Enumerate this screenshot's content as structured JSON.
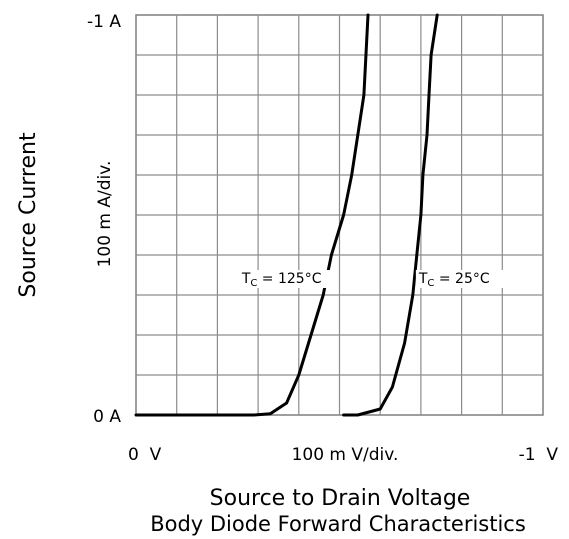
{
  "chart_data": {
    "type": "line",
    "title": "Body Diode Forward Characteristics",
    "xlabel": "Source to Drain Voltage",
    "ylabel": "Source Current",
    "x_tick_labels": {
      "left": "0  V",
      "center": "100 m V/div.",
      "right": "-1  V"
    },
    "y_tick_labels": {
      "top": "-1  A",
      "bottom": "0  A",
      "center": "100 m A/div."
    },
    "xlim": [
      0,
      -1.0
    ],
    "ylim": [
      0,
      -1.0
    ],
    "x_unit": "V",
    "y_unit": "A",
    "grid": true,
    "series": [
      {
        "name": "TC = 125°C",
        "label_main": "T",
        "label_sub": "C",
        "label_rest": " = 125°C",
        "label_at": [
          -0.26,
          -0.33
        ],
        "x": [
          0.0,
          -0.02,
          -0.14,
          -0.24,
          -0.29,
          -0.33,
          -0.37,
          -0.4,
          -0.43,
          -0.46,
          -0.48,
          -0.51,
          -0.53,
          -0.545,
          -0.56,
          -0.57
        ],
        "y": [
          0.0,
          0.0,
          0.0,
          0.0,
          0.0,
          -0.003,
          -0.03,
          -0.1,
          -0.2,
          -0.3,
          -0.4,
          -0.5,
          -0.6,
          -0.7,
          -0.8,
          -1.0
        ]
      },
      {
        "name": "TC = 25°C",
        "label_main": "T",
        "label_sub": "C",
        "label_rest": " = 25°C",
        "label_at": [
          -0.695,
          -0.33
        ],
        "x": [
          -0.51,
          -0.545,
          -0.6,
          -0.63,
          -0.66,
          -0.68,
          -0.69,
          -0.7,
          -0.705,
          -0.715,
          -0.72,
          -0.725,
          -0.74
        ],
        "y": [
          0.0,
          0.0,
          -0.015,
          -0.07,
          -0.18,
          -0.3,
          -0.4,
          -0.5,
          -0.6,
          -0.7,
          -0.8,
          -0.9,
          -1.0
        ]
      }
    ]
  }
}
